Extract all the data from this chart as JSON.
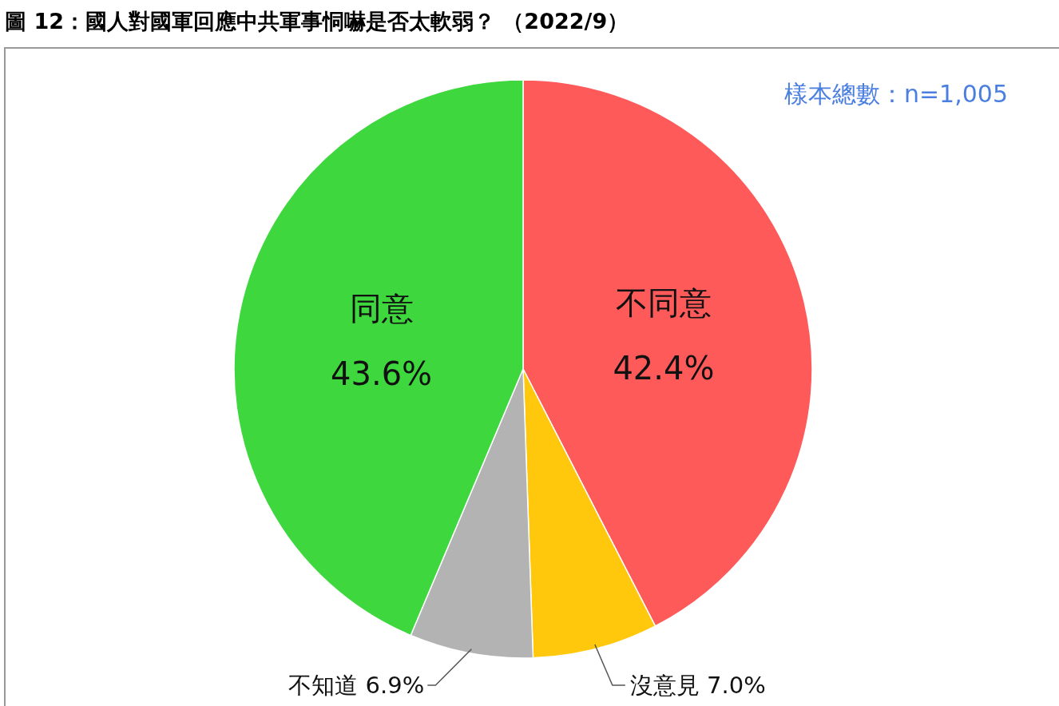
{
  "chart_data": {
    "type": "pie",
    "title": "圖 12：國人對國軍回應中共軍事恫嚇是否太軟弱？ （2022/9）",
    "categories": [
      "不同意",
      "沒意見",
      "不知道",
      "同意"
    ],
    "values": [
      42.4,
      7.0,
      6.9,
      43.6
    ],
    "colors": [
      "#ff5a5a",
      "#ffc80d",
      "#b3b3b3",
      "#3ed83e"
    ],
    "value_labels": [
      "42.4%",
      "7.0%",
      "6.9%",
      "43.6%"
    ],
    "annotations": [
      "樣本總數：n=1,005"
    ]
  }
}
